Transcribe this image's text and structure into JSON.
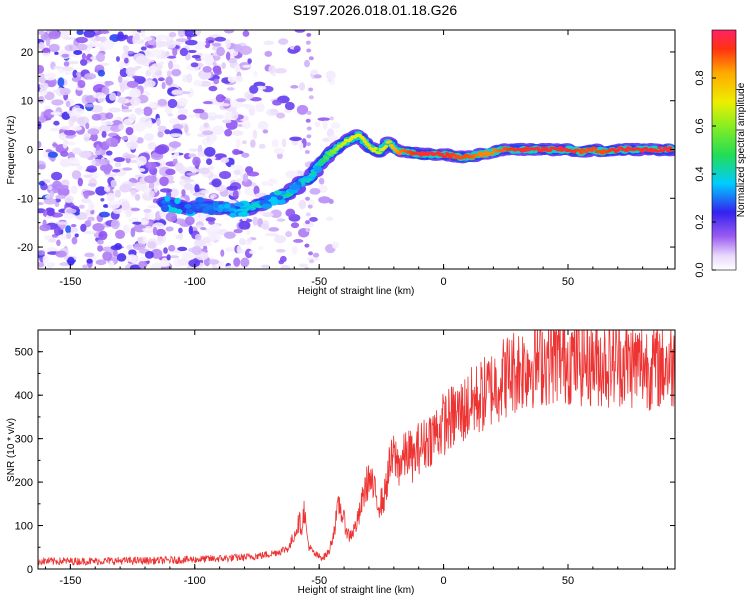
{
  "title": "S197.2026.018.01.18.G26",
  "colors": {
    "snr_line": "#ee3333",
    "ridge_core": "#dd2222",
    "scatter_purple": "#8844ee"
  },
  "chart_data": [
    {
      "type": "heatmap",
      "xlabel": "Height of straight line (km)",
      "ylabel": "Frequency (Hz)",
      "xlim": [
        -163,
        93
      ],
      "ylim": [
        -24.5,
        24.5
      ],
      "xticks": [
        "-150",
        "-100",
        "-50",
        "0",
        "50"
      ],
      "yticks": [
        "20",
        "10",
        "0",
        "-10",
        "-20"
      ],
      "ridge": {
        "x": [
          -112,
          -105,
          -97,
          -90,
          -83,
          -78,
          -72,
          -67,
          -62,
          -58,
          -54,
          -50,
          -46,
          -42,
          -38,
          -34,
          -30,
          -26,
          -22,
          -18,
          -14,
          -10,
          -5,
          0,
          5,
          10,
          15,
          20,
          25,
          30,
          40,
          50,
          55,
          60,
          65,
          70,
          80,
          92
        ],
        "y": [
          -11,
          -12,
          -11.5,
          -12,
          -12.5,
          -12,
          -11,
          -10,
          -9,
          -7,
          -6,
          -3,
          -1,
          0.5,
          2,
          3,
          0.5,
          -0.5,
          1.5,
          -0.5,
          -0.5,
          -1,
          -1,
          -1,
          -1.5,
          -1.5,
          -1,
          -0.5,
          0,
          0,
          0,
          0,
          -0.5,
          0,
          -0.5,
          0,
          0,
          0
        ],
        "amplitude": [
          0.3,
          0.25,
          0.3,
          0.3,
          0.35,
          0.4,
          0.4,
          0.45,
          0.45,
          0.4,
          0.4,
          0.45,
          0.55,
          0.65,
          0.7,
          0.7,
          0.75,
          0.65,
          0.75,
          0.85,
          0.9,
          0.95,
          0.95,
          0.95,
          0.9,
          0.9,
          0.85,
          0.85,
          0.9,
          0.95,
          0.95,
          0.95,
          0.9,
          0.9,
          0.9,
          0.95,
          0.95,
          0.95
        ]
      },
      "noise_region_x": [
        -163,
        -55
      ],
      "colorbar": {
        "label": "Normalized spectral amplitude",
        "range": [
          0,
          1
        ],
        "ticks": [
          "0.0",
          "0.2",
          "0.4",
          "0.6",
          "0.8"
        ]
      }
    },
    {
      "type": "line",
      "xlabel": "Height of straight line (km)",
      "ylabel": "SNR (10 * v/v)",
      "xlim": [
        -163,
        93
      ],
      "ylim": [
        0,
        550
      ],
      "xticks": [
        "-150",
        "-100",
        "-50",
        "0",
        "50"
      ],
      "yticks": [
        "0",
        "100",
        "200",
        "300",
        "400",
        "500"
      ],
      "series": [
        {
          "name": "SNR",
          "x": [
            -163,
            -150,
            -140,
            -130,
            -120,
            -110,
            -100,
            -90,
            -80,
            -72,
            -66,
            -62,
            -60,
            -58,
            -57,
            -56,
            -55,
            -54,
            -52,
            -50,
            -48,
            -46,
            -44,
            -42,
            -40,
            -38,
            -36,
            -34,
            -32,
            -30,
            -28,
            -26,
            -24,
            -22,
            -20,
            -18,
            -16,
            -14,
            -12,
            -10,
            -8,
            -6,
            -4,
            -2,
            0,
            4,
            8,
            12,
            16,
            20,
            24,
            28,
            32,
            36,
            40,
            45,
            50,
            55,
            60,
            65,
            70,
            75,
            80,
            85,
            90,
            93
          ],
          "y": [
            18,
            18,
            18,
            19,
            19,
            20,
            22,
            24,
            27,
            32,
            40,
            50,
            80,
            110,
            95,
            140,
            80,
            50,
            35,
            28,
            28,
            40,
            90,
            150,
            110,
            75,
            90,
            120,
            175,
            210,
            180,
            150,
            160,
            230,
            260,
            240,
            255,
            270,
            250,
            280,
            285,
            300,
            310,
            320,
            335,
            350,
            365,
            385,
            400,
            420,
            440,
            455,
            465,
            475,
            480,
            485,
            485,
            480,
            478,
            474,
            480,
            472,
            470,
            468,
            470,
            468
          ],
          "jitter": 0.16
        }
      ]
    }
  ]
}
